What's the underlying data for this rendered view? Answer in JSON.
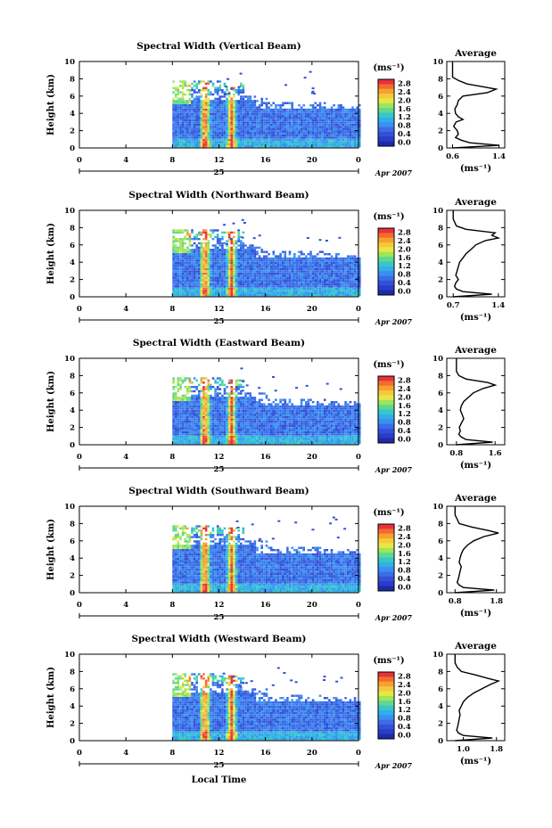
{
  "colorbar": {
    "unit": "(ms⁻¹)",
    "ticks": [
      "2.8",
      "2.4",
      "2.0",
      "1.6",
      "1.2",
      "0.8",
      "0.4",
      "0.0"
    ],
    "colors": [
      "#e8323a",
      "#f26c2e",
      "#f8a030",
      "#f5c93b",
      "#e6e845",
      "#9ee55a",
      "#5fd890",
      "#36c8c8",
      "#2fb0e8",
      "#3a8ff0",
      "#3a6de8",
      "#3450d8",
      "#2a3cc8",
      "#1e2aa8"
    ]
  },
  "avg_title": "Average",
  "avg_unit": "(ms⁻¹)",
  "x_axis": {
    "ticks": [
      "0",
      "4",
      "8",
      "12",
      "16",
      "20",
      "0"
    ],
    "day_label": "25",
    "date_label": "Apr 2007",
    "xlabel": "Local Time"
  },
  "y_axis": {
    "ylabel": "Height (km)",
    "ticks": [
      "0",
      "2",
      "4",
      "6",
      "8",
      "10"
    ]
  },
  "chart_data": [
    {
      "type": "heatmap",
      "title": "Spectral Width (Vertical Beam)",
      "xlim": [
        0,
        24
      ],
      "ylim": [
        0,
        10
      ],
      "average": {
        "xticks": [
          "0.6",
          "1.4"
        ],
        "xlim": [
          0.5,
          1.5
        ],
        "height_km": [
          0,
          0.3,
          0.6,
          0.9,
          1.2,
          1.6,
          2.0,
          2.5,
          3.0,
          3.3,
          3.6,
          4.0,
          4.5,
          5.0,
          5.5,
          6.0,
          6.4,
          6.8,
          7.1,
          7.4,
          7.8,
          8.2,
          9.0,
          10.0
        ],
        "width": [
          0.6,
          1.4,
          0.9,
          0.75,
          0.65,
          0.7,
          0.68,
          0.62,
          0.66,
          0.78,
          0.7,
          0.65,
          0.64,
          0.68,
          0.7,
          0.78,
          1.2,
          1.35,
          1.1,
          0.85,
          0.7,
          0.6,
          0.6,
          0.6
        ]
      }
    },
    {
      "type": "heatmap",
      "title": "Spectral Width (Northward Beam)",
      "xlim": [
        0,
        24
      ],
      "ylim": [
        0,
        10
      ],
      "average": {
        "xticks": [
          "0.7",
          "1.4"
        ],
        "xlim": [
          0.6,
          1.5
        ],
        "height_km": [
          0,
          0.3,
          0.6,
          0.9,
          1.2,
          1.6,
          2.0,
          2.5,
          3.0,
          3.5,
          4.0,
          4.5,
          5.0,
          5.5,
          6.0,
          6.5,
          6.8,
          7.1,
          7.4,
          7.8,
          8.2,
          9.0,
          10.0
        ],
        "width": [
          0.7,
          1.3,
          0.85,
          0.75,
          0.72,
          0.74,
          0.78,
          0.74,
          0.76,
          0.78,
          0.8,
          0.85,
          0.9,
          0.98,
          1.05,
          1.2,
          1.4,
          1.3,
          1.35,
          0.9,
          0.75,
          0.7,
          0.7
        ]
      }
    },
    {
      "type": "heatmap",
      "title": "Spectral Width (Eastward Beam)",
      "xlim": [
        0,
        24
      ],
      "ylim": [
        0,
        10
      ],
      "average": {
        "xticks": [
          "0.8",
          "1.6"
        ],
        "xlim": [
          0.6,
          1.8
        ],
        "height_km": [
          0,
          0.3,
          0.6,
          0.9,
          1.2,
          1.6,
          2.0,
          2.5,
          3.0,
          3.5,
          4.0,
          4.5,
          5.0,
          5.5,
          6.0,
          6.5,
          6.9,
          7.2,
          7.6,
          8.0,
          8.5,
          9.0,
          10.0
        ],
        "width": [
          0.8,
          1.55,
          1.0,
          0.9,
          0.85,
          0.88,
          0.86,
          0.9,
          0.95,
          0.92,
          0.88,
          0.9,
          0.95,
          1.05,
          1.15,
          1.35,
          1.6,
          1.45,
          1.0,
          0.85,
          0.8,
          0.8,
          0.8
        ]
      }
    },
    {
      "type": "heatmap",
      "title": "Spectral Width (Southward Beam)",
      "xlim": [
        0,
        24
      ],
      "ylim": [
        0,
        10
      ],
      "average": {
        "xticks": [
          "0.8",
          "1.8"
        ],
        "xlim": [
          0.6,
          2.0
        ],
        "height_km": [
          0,
          0.3,
          0.6,
          0.9,
          1.2,
          1.6,
          2.0,
          2.5,
          3.0,
          3.5,
          4.0,
          4.5,
          5.0,
          5.5,
          6.0,
          6.5,
          6.9,
          7.2,
          7.6,
          8.0,
          8.5,
          9.0,
          10.0
        ],
        "width": [
          0.8,
          1.75,
          1.0,
          0.9,
          0.85,
          0.88,
          0.9,
          0.92,
          0.95,
          0.9,
          0.92,
          0.95,
          1.0,
          1.1,
          1.25,
          1.5,
          1.85,
          1.6,
          1.2,
          0.9,
          0.85,
          0.8,
          0.8
        ]
      }
    },
    {
      "type": "heatmap",
      "title": "Spectral Width (Westward Beam)",
      "xlim": [
        0,
        24
      ],
      "ylim": [
        0,
        10
      ],
      "average": {
        "xticks": [
          "1.0",
          "1.8"
        ],
        "xlim": [
          0.6,
          2.0
        ],
        "height_km": [
          0,
          0.3,
          0.6,
          0.9,
          1.2,
          1.6,
          2.0,
          2.5,
          3.0,
          3.5,
          4.0,
          4.5,
          5.0,
          5.5,
          6.0,
          6.5,
          6.9,
          7.2,
          7.6,
          8.0,
          8.5,
          9.0,
          10.0
        ],
        "width": [
          0.8,
          1.7,
          1.0,
          0.88,
          0.84,
          0.86,
          0.88,
          0.9,
          0.92,
          0.9,
          0.95,
          1.0,
          1.1,
          1.25,
          1.45,
          1.65,
          1.85,
          1.6,
          1.3,
          0.95,
          0.85,
          0.8,
          0.8
        ]
      }
    }
  ]
}
